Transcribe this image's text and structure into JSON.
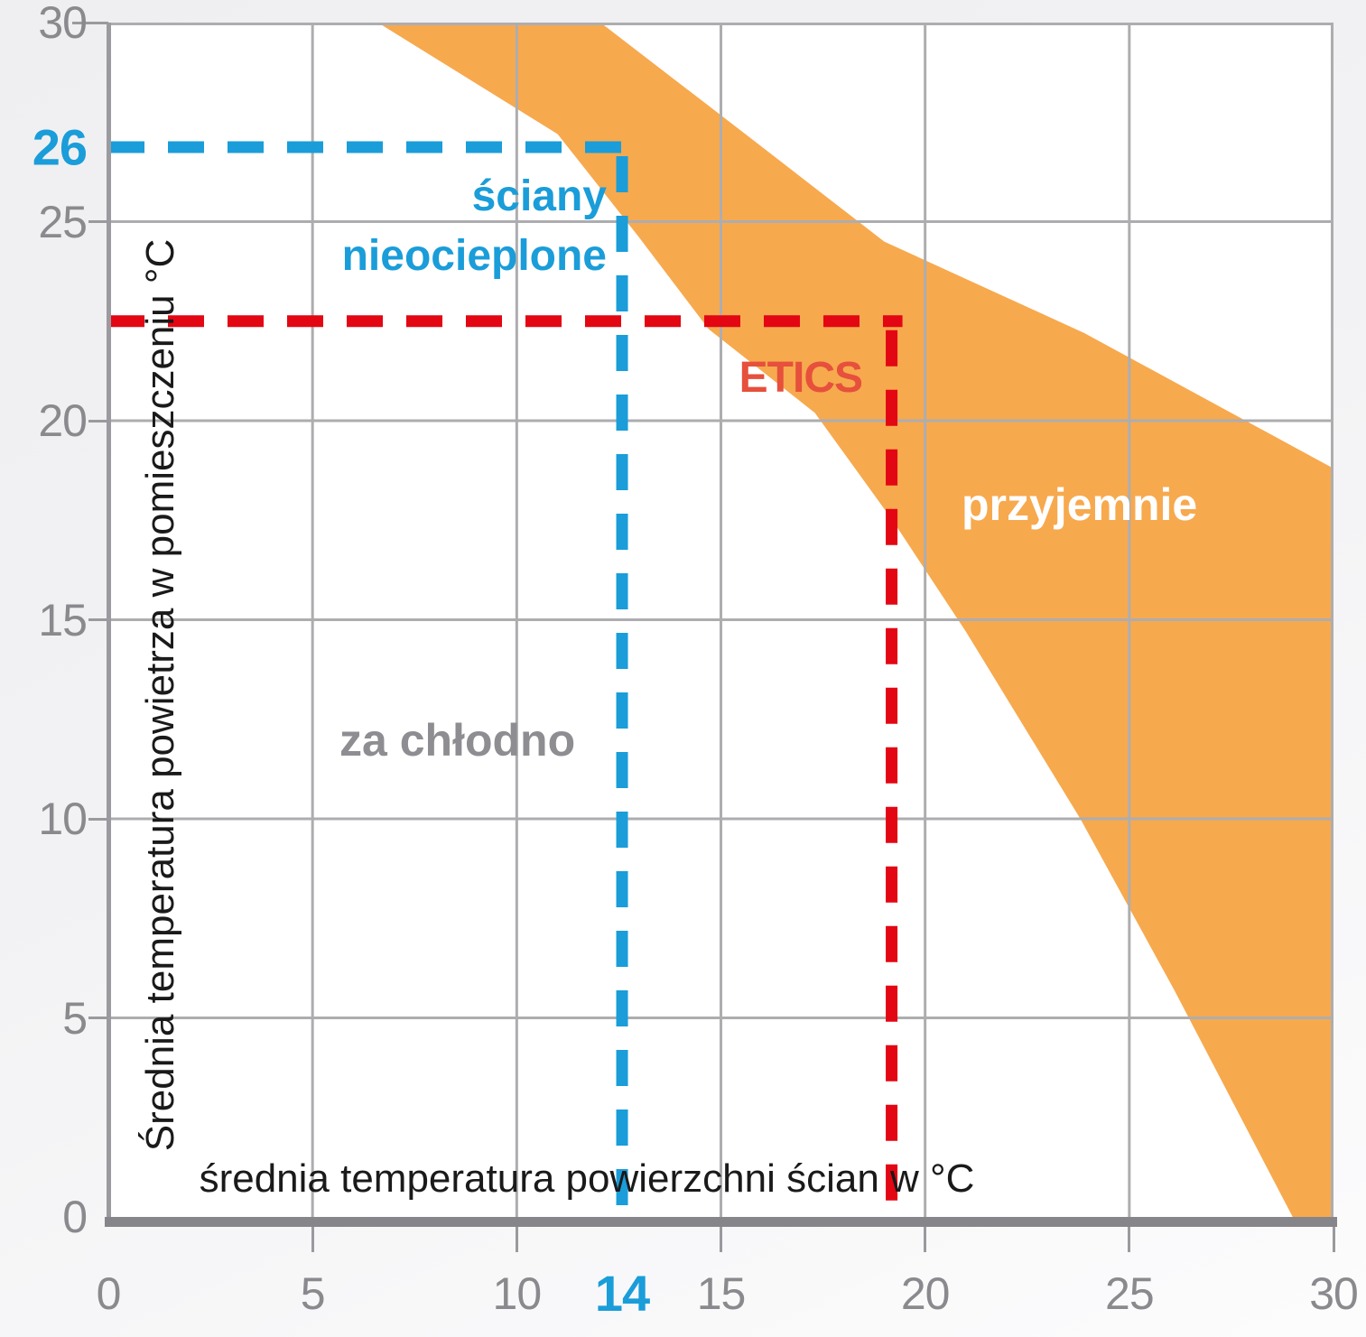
{
  "chart_data": {
    "type": "area",
    "title": "",
    "xlabel": "średnia temperatura powierzchni ścian w °C",
    "ylabel": "Średnia temperatura powietrza w pomieszczeniu  °C",
    "xlim": [
      0,
      30
    ],
    "ylim": [
      0,
      30
    ],
    "grid": true,
    "gridlines_at": [
      5,
      10,
      15,
      20,
      25
    ],
    "ticks_x": {
      "values": [
        0,
        5,
        10,
        15,
        20,
        25,
        30
      ],
      "labels": [
        "0",
        "5",
        "10",
        "15",
        "20",
        "25",
        "30"
      ]
    },
    "ticks_y": {
      "values": [
        0,
        5,
        10,
        15,
        20,
        25,
        30
      ],
      "labels": [
        "0",
        "5",
        "10",
        "15",
        "20",
        "25",
        "30"
      ]
    },
    "comfort_band": {
      "label": "przyjemnie",
      "color": "#F7A94E",
      "polygon": [
        [
          6.6,
          30
        ],
        [
          12.05,
          30
        ],
        [
          15.6,
          27.2
        ],
        [
          19.0,
          24.5
        ],
        [
          23.9,
          22.2
        ],
        [
          30,
          18.8
        ],
        [
          30,
          0
        ],
        [
          29,
          0
        ],
        [
          26.1,
          5.7
        ],
        [
          23.8,
          10
        ],
        [
          21.0,
          14.7
        ],
        [
          19.2,
          17.5
        ],
        [
          17.3,
          20.2
        ],
        [
          14.7,
          22.3
        ],
        [
          13.0,
          24.6
        ],
        [
          11.0,
          27.2
        ],
        [
          6.6,
          30
        ]
      ]
    },
    "marker_uninsulated": {
      "label_line1": "ściany",
      "label_line2": "nieocieplone",
      "color": "#1A9DD9",
      "wall_surface_temp_label": "14",
      "room_air_temp_label": "26",
      "wall_surface_temp_nominal": 14,
      "room_air_temp_nominal": 26,
      "x_pos": 12.58,
      "y_pos": 26.87
    },
    "marker_etics": {
      "label": "ETICS",
      "color": "#E30613",
      "label_color": "#E6503C",
      "x_pos": 19.18,
      "y_pos": 22.5
    },
    "zone_too_cold": {
      "label": "za chłodno"
    }
  },
  "colors": {
    "orange_band": "#F7A94E",
    "blue": "#1A9DD9",
    "red": "#E30613",
    "etics_text": "#E6503C",
    "zone_gray_text": "#8E8E92",
    "grid": "#ADADB0",
    "tick_text": "#8A8A8E",
    "tick_mark": "#9A9A9E",
    "border_left": "#9B9B9F",
    "axis_bar": "#85858A",
    "black_text": "#1A1A1A",
    "plot_bg": "#FFFFFF"
  }
}
